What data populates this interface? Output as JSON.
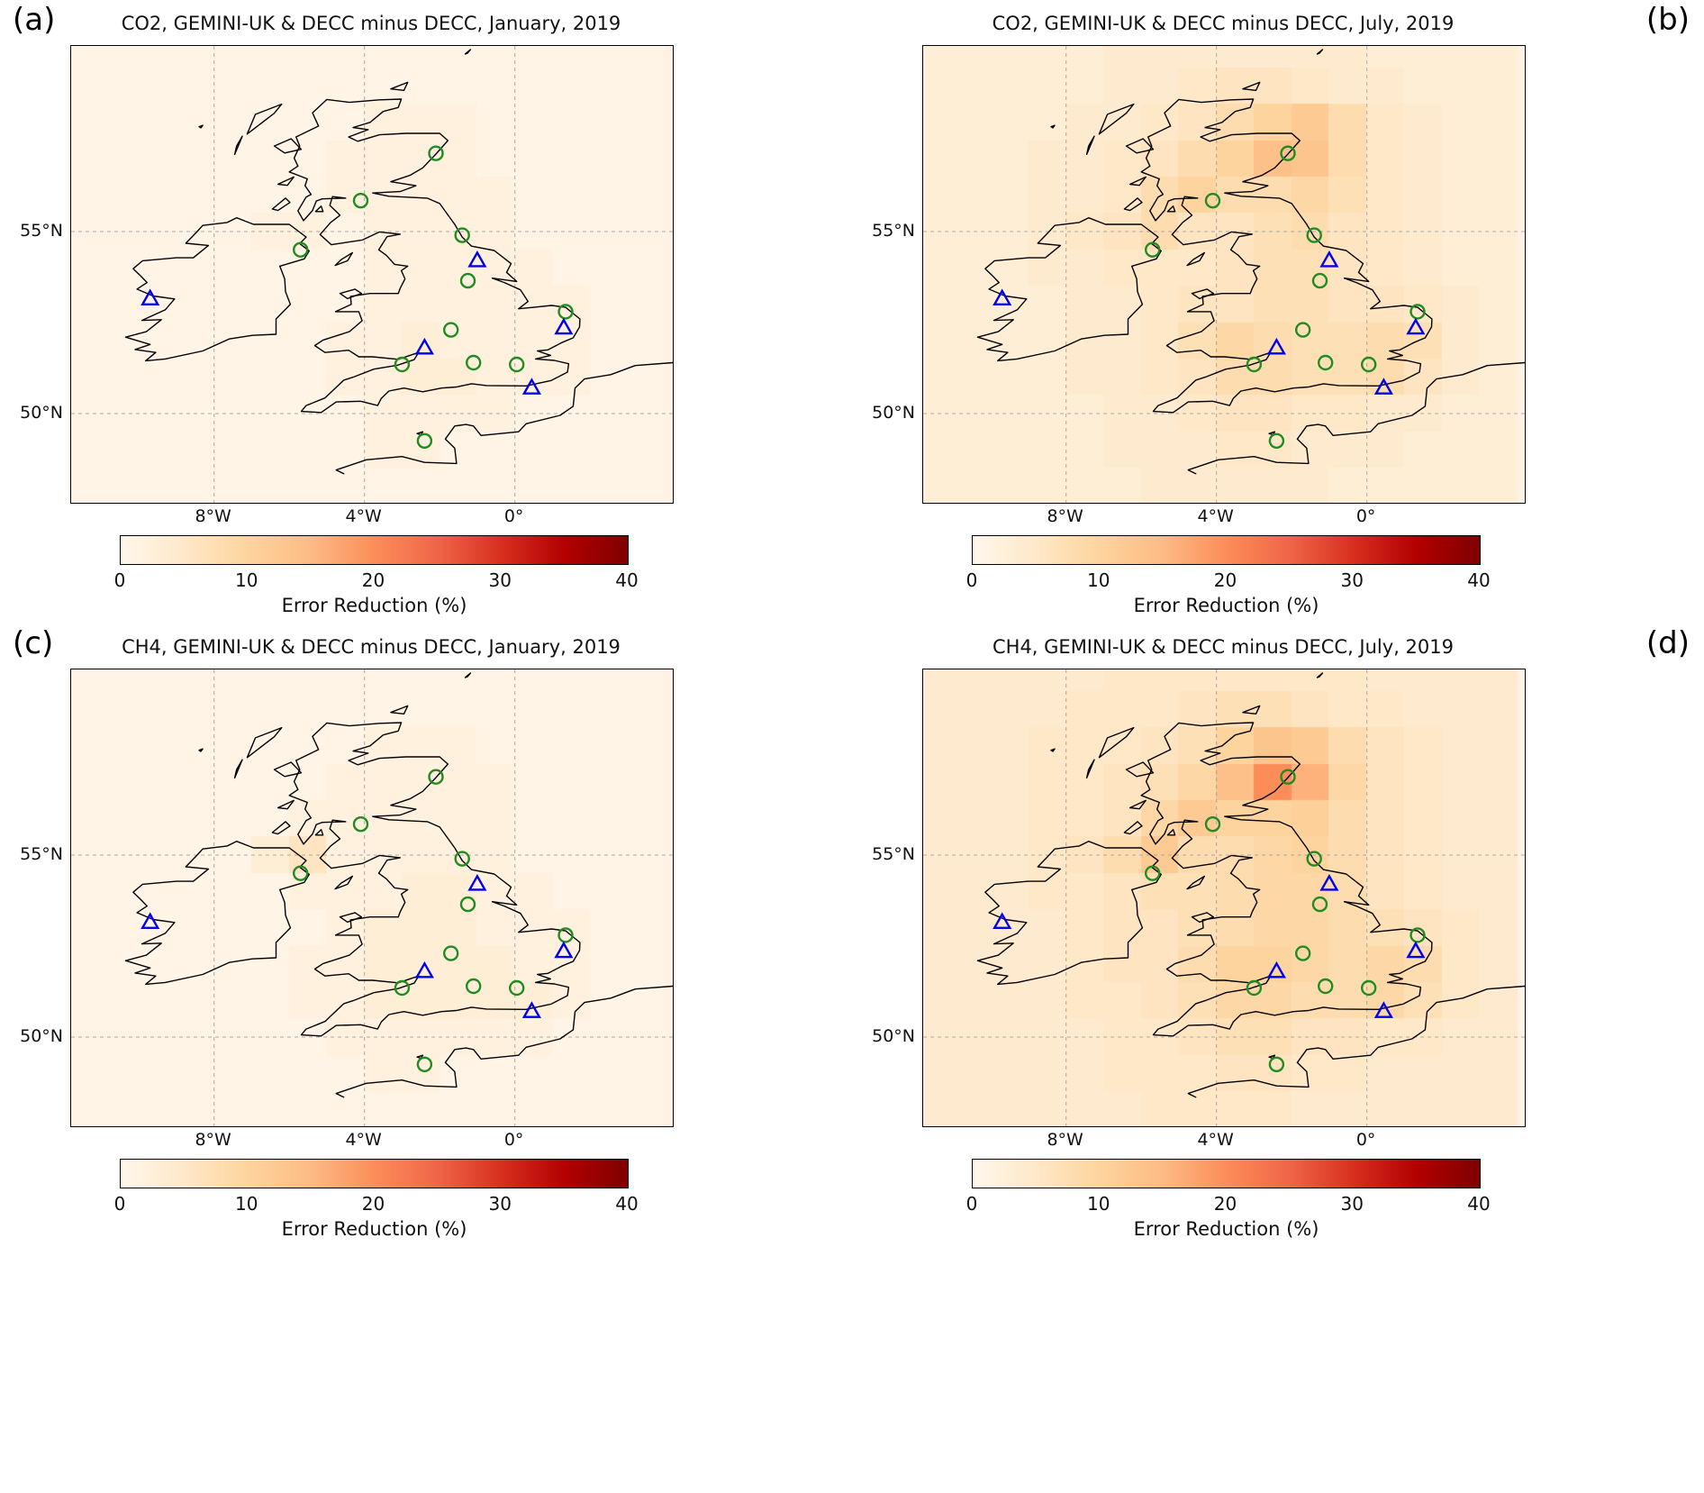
{
  "figure": {
    "panels": [
      {
        "letter": "(a)",
        "title": "CO2, GEMINI-UK & DECC minus DECC, January, 2019"
      },
      {
        "letter": "(b)",
        "title": "CO2, GEMINI-UK & DECC minus DECC, July, 2019"
      },
      {
        "letter": "(c)",
        "title": "CH4, GEMINI-UK & DECC minus DECC, January, 2019"
      },
      {
        "letter": "(d)",
        "title": "CH4, GEMINI-UK & DECC minus DECC, July, 2019"
      }
    ],
    "map": {
      "x_ticks": [
        {
          "label": "8°W",
          "lon": -8
        },
        {
          "label": "4°W",
          "lon": -4
        },
        {
          "label": "0°",
          "lon": 0
        }
      ],
      "y_ticks": [
        {
          "label": "55°N",
          "lat": 55
        },
        {
          "label": "50°N",
          "lat": 50
        }
      ]
    },
    "colorbar": {
      "label": "Error Reduction (%)",
      "min": 0,
      "max": 40,
      "ticks": [
        {
          "label": "0",
          "value": 0
        },
        {
          "label": "10",
          "value": 10
        },
        {
          "label": "20",
          "value": 20
        },
        {
          "label": "30",
          "value": 30
        },
        {
          "label": "40",
          "value": 40
        }
      ],
      "colormap": [
        "#fff7ec",
        "#fee8c8",
        "#fdd49e",
        "#fdbb84",
        "#fc8d59",
        "#ef6548",
        "#d7301f",
        "#b30000",
        "#7f0000"
      ]
    },
    "sites": {
      "gemini_circles": {
        "marker": "circle",
        "color": "#228B22",
        "points": [
          [
            -2.1,
            57.15
          ],
          [
            -4.1,
            55.85
          ],
          [
            -1.4,
            54.9
          ],
          [
            -5.7,
            54.5
          ],
          [
            -1.25,
            53.65
          ],
          [
            1.35,
            52.8
          ],
          [
            -1.7,
            52.3
          ],
          [
            -3.0,
            51.35
          ],
          [
            -1.1,
            51.4
          ],
          [
            0.05,
            51.35
          ],
          [
            -2.4,
            49.25
          ]
        ]
      },
      "decc_triangles": {
        "marker": "triangle",
        "color": "#0000ee",
        "points": [
          [
            -9.7,
            53.15
          ],
          [
            -1.0,
            54.2
          ],
          [
            -2.4,
            51.8
          ],
          [
            1.3,
            52.35
          ],
          [
            0.45,
            50.7
          ]
        ]
      }
    }
  },
  "chart_data": [
    {
      "type": "heatmap",
      "title": "CO2, GEMINI-UK & DECC minus DECC, January, 2019",
      "species": "CO2",
      "month": "January",
      "year": 2019,
      "colorbar_label": "Error Reduction (%)",
      "vmin": 0,
      "vmax": 40,
      "grid": {
        "lon_start": -12,
        "dlon": 1,
        "lat_start": 60.5,
        "dlat": 1,
        "ncols": 16,
        "nrows": 13,
        "values": [
          [
            1,
            1,
            1,
            1,
            1,
            1,
            1,
            1,
            1,
            1,
            1,
            1,
            1,
            1,
            1,
            1
          ],
          [
            1,
            1,
            1,
            1,
            1,
            1,
            1,
            1,
            1,
            1,
            1,
            1,
            1,
            1,
            1,
            1
          ],
          [
            1,
            1,
            1,
            1,
            1,
            1,
            1,
            1,
            2,
            2,
            2,
            1,
            1,
            1,
            1,
            1
          ],
          [
            1,
            1,
            1,
            1,
            1,
            1,
            1,
            2,
            2,
            2,
            2,
            1,
            1,
            1,
            1,
            1
          ],
          [
            1,
            1,
            1,
            1,
            1,
            1,
            1,
            2,
            2,
            2,
            2,
            2,
            1,
            1,
            1,
            1
          ],
          [
            1,
            1,
            1,
            1,
            1,
            2,
            2,
            1,
            2,
            2,
            2,
            2,
            1,
            1,
            1,
            1
          ],
          [
            1,
            1,
            1,
            1,
            1,
            1,
            1,
            1,
            2,
            2,
            2,
            2,
            2,
            1,
            1,
            1
          ],
          [
            1,
            1,
            1,
            1,
            1,
            1,
            1,
            1,
            2,
            2,
            2,
            2,
            2,
            2,
            1,
            1
          ],
          [
            1,
            1,
            1,
            1,
            1,
            1,
            1,
            2,
            2,
            3,
            2,
            2,
            2,
            2,
            1,
            1
          ],
          [
            1,
            1,
            1,
            1,
            1,
            1,
            1,
            2,
            2,
            3,
            3,
            2,
            2,
            2,
            1,
            1
          ],
          [
            1,
            1,
            1,
            1,
            1,
            1,
            1,
            1,
            2,
            2,
            2,
            2,
            1,
            1,
            1,
            1
          ],
          [
            1,
            1,
            1,
            1,
            1,
            1,
            1,
            1,
            2,
            2,
            1,
            1,
            1,
            1,
            1,
            1
          ],
          [
            1,
            1,
            1,
            1,
            1,
            1,
            1,
            1,
            1,
            1,
            1,
            1,
            1,
            1,
            1,
            1
          ]
        ]
      }
    },
    {
      "type": "heatmap",
      "title": "CO2, GEMINI-UK & DECC minus DECC, July, 2019",
      "species": "CO2",
      "month": "July",
      "year": 2019,
      "colorbar_label": "Error Reduction (%)",
      "vmin": 0,
      "vmax": 40,
      "grid": {
        "lon_start": -12,
        "dlon": 1,
        "lat_start": 60.5,
        "dlat": 1,
        "ncols": 16,
        "nrows": 13,
        "values": [
          [
            3,
            3,
            3,
            3,
            3,
            4,
            4,
            4,
            4,
            4,
            4,
            4,
            3,
            3,
            3,
            3
          ],
          [
            3,
            3,
            3,
            3,
            3,
            4,
            4,
            5,
            6,
            6,
            5,
            4,
            4,
            3,
            3,
            3
          ],
          [
            3,
            3,
            3,
            3,
            4,
            4,
            5,
            6,
            8,
            10,
            12,
            8,
            5,
            4,
            3,
            3
          ],
          [
            3,
            3,
            3,
            4,
            4,
            5,
            6,
            8,
            10,
            14,
            13,
            8,
            5,
            4,
            3,
            3
          ],
          [
            3,
            3,
            3,
            4,
            4,
            5,
            8,
            10,
            8,
            8,
            9,
            7,
            5,
            4,
            3,
            3
          ],
          [
            3,
            3,
            3,
            4,
            5,
            6,
            8,
            6,
            6,
            7,
            8,
            6,
            5,
            4,
            3,
            3
          ],
          [
            3,
            3,
            3,
            4,
            4,
            5,
            5,
            5,
            6,
            7,
            7,
            6,
            5,
            4,
            3,
            3
          ],
          [
            3,
            3,
            3,
            3,
            4,
            4,
            5,
            6,
            6,
            7,
            7,
            6,
            6,
            5,
            4,
            3
          ],
          [
            3,
            3,
            3,
            3,
            4,
            4,
            5,
            7,
            9,
            8,
            7,
            7,
            8,
            7,
            4,
            3
          ],
          [
            3,
            3,
            3,
            3,
            4,
            4,
            5,
            6,
            8,
            8,
            7,
            7,
            8,
            6,
            4,
            3
          ],
          [
            3,
            3,
            3,
            3,
            3,
            4,
            4,
            5,
            6,
            6,
            5,
            5,
            4,
            4,
            3,
            3
          ],
          [
            3,
            3,
            3,
            3,
            3,
            4,
            4,
            4,
            5,
            5,
            4,
            4,
            4,
            3,
            3,
            3
          ],
          [
            3,
            3,
            3,
            3,
            3,
            3,
            4,
            4,
            4,
            4,
            4,
            3,
            3,
            3,
            3,
            3
          ]
        ]
      }
    },
    {
      "type": "heatmap",
      "title": "CH4, GEMINI-UK & DECC minus DECC, January, 2019",
      "species": "CH4",
      "month": "January",
      "year": 2019,
      "colorbar_label": "Error Reduction (%)",
      "vmin": 0,
      "vmax": 40,
      "grid": {
        "lon_start": -12,
        "dlon": 1,
        "lat_start": 60.5,
        "dlat": 1,
        "ncols": 16,
        "nrows": 13,
        "values": [
          [
            1,
            1,
            1,
            1,
            1,
            1,
            1,
            1,
            1,
            1,
            1,
            1,
            1,
            1,
            1,
            1
          ],
          [
            1,
            1,
            1,
            1,
            1,
            1,
            1,
            1,
            1,
            1,
            1,
            1,
            1,
            1,
            1,
            1
          ],
          [
            1,
            1,
            1,
            1,
            1,
            1,
            1,
            1,
            2,
            2,
            2,
            1,
            1,
            1,
            1,
            1
          ],
          [
            1,
            1,
            1,
            1,
            1,
            1,
            1,
            2,
            2,
            2,
            2,
            2,
            1,
            1,
            1,
            1
          ],
          [
            1,
            1,
            1,
            1,
            1,
            1,
            2,
            2,
            2,
            2,
            2,
            2,
            1,
            1,
            1,
            1
          ],
          [
            1,
            1,
            1,
            1,
            1,
            3,
            6,
            2,
            2,
            2,
            2,
            2,
            1,
            1,
            1,
            1
          ],
          [
            1,
            1,
            1,
            1,
            1,
            1,
            2,
            2,
            2,
            3,
            3,
            2,
            2,
            1,
            1,
            1
          ],
          [
            1,
            1,
            1,
            1,
            1,
            1,
            1,
            2,
            3,
            3,
            3,
            2,
            2,
            2,
            1,
            1
          ],
          [
            1,
            1,
            1,
            1,
            1,
            1,
            2,
            2,
            3,
            3,
            3,
            3,
            2,
            2,
            1,
            1
          ],
          [
            1,
            1,
            1,
            1,
            1,
            1,
            2,
            2,
            3,
            3,
            3,
            3,
            3,
            2,
            1,
            1
          ],
          [
            1,
            1,
            1,
            1,
            1,
            1,
            1,
            2,
            2,
            2,
            2,
            2,
            2,
            1,
            1,
            1
          ],
          [
            1,
            1,
            1,
            1,
            1,
            1,
            1,
            1,
            2,
            2,
            1,
            1,
            1,
            1,
            1,
            1
          ],
          [
            1,
            1,
            1,
            1,
            1,
            1,
            1,
            1,
            1,
            1,
            1,
            1,
            1,
            1,
            1,
            1
          ]
        ]
      }
    },
    {
      "type": "heatmap",
      "title": "CH4, GEMINI-UK & DECC minus DECC, July, 2019",
      "species": "CH4",
      "month": "July",
      "year": 2019,
      "colorbar_label": "Error Reduction (%)",
      "vmin": 0,
      "vmax": 40,
      "grid": {
        "lon_start": -12,
        "dlon": 1,
        "lat_start": 60.5,
        "dlat": 1,
        "ncols": 16,
        "nrows": 13,
        "values": [
          [
            4,
            4,
            4,
            4,
            4,
            5,
            5,
            5,
            5,
            5,
            5,
            5,
            4,
            4,
            4,
            4
          ],
          [
            4,
            4,
            4,
            4,
            5,
            5,
            5,
            6,
            7,
            7,
            6,
            5,
            5,
            4,
            4,
            4
          ],
          [
            4,
            4,
            4,
            5,
            5,
            5,
            6,
            7,
            10,
            13,
            12,
            8,
            6,
            5,
            4,
            4
          ],
          [
            4,
            4,
            4,
            5,
            5,
            6,
            7,
            9,
            14,
            20,
            16,
            9,
            6,
            5,
            4,
            4
          ],
          [
            4,
            4,
            4,
            5,
            5,
            6,
            9,
            12,
            10,
            10,
            11,
            8,
            6,
            5,
            4,
            4
          ],
          [
            4,
            4,
            4,
            5,
            6,
            8,
            12,
            8,
            8,
            9,
            10,
            8,
            6,
            5,
            4,
            4
          ],
          [
            4,
            4,
            4,
            5,
            5,
            6,
            7,
            7,
            8,
            9,
            9,
            8,
            6,
            5,
            4,
            4
          ],
          [
            4,
            4,
            4,
            4,
            5,
            6,
            6,
            7,
            8,
            9,
            9,
            8,
            7,
            6,
            5,
            4
          ],
          [
            4,
            4,
            4,
            4,
            5,
            6,
            6,
            8,
            10,
            10,
            9,
            8,
            9,
            8,
            5,
            4
          ],
          [
            4,
            4,
            4,
            4,
            5,
            5,
            6,
            7,
            9,
            9,
            8,
            8,
            9,
            7,
            5,
            4
          ],
          [
            4,
            4,
            4,
            4,
            4,
            5,
            5,
            6,
            7,
            7,
            6,
            6,
            5,
            5,
            4,
            4
          ],
          [
            4,
            4,
            4,
            4,
            4,
            5,
            5,
            5,
            6,
            6,
            5,
            5,
            4,
            4,
            4,
            4
          ],
          [
            4,
            4,
            4,
            4,
            4,
            4,
            5,
            5,
            5,
            5,
            4,
            4,
            4,
            4,
            4,
            4
          ]
        ]
      }
    }
  ]
}
